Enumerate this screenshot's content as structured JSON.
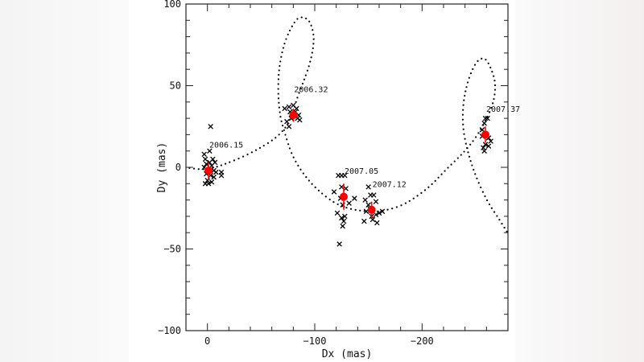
{
  "chart_data": {
    "type": "scatter",
    "title": "",
    "xlabel": "Dx (mas)",
    "ylabel": "Dy (mas)",
    "xlim": [
      20,
      -280
    ],
    "ylim": [
      -100,
      100
    ],
    "x_reversed": true,
    "x_ticks": [
      0,
      -100,
      -200
    ],
    "x_tick_labels": [
      "0",
      "−100",
      "−200"
    ],
    "y_ticks": [
      100,
      50,
      0,
      -50,
      -100
    ],
    "y_tick_labels": [
      "100",
      "50",
      "0",
      "−50",
      "−100"
    ],
    "x_minor_step": 20,
    "y_minor_step": 10,
    "grid": false,
    "colors": {
      "measurements": "#000000",
      "means": "#ff0000",
      "orbit": "#000000"
    },
    "model_curve": [
      [
        21,
        0
      ],
      [
        0,
        -1
      ],
      [
        -24,
        4
      ],
      [
        -46.5,
        11
      ],
      [
        -65,
        19
      ],
      [
        -76.5,
        28.6
      ],
      [
        -84,
        43
      ],
      [
        -95,
        63
      ],
      [
        -99,
        78
      ],
      [
        -96,
        88
      ],
      [
        -90,
        91.6
      ],
      [
        -82.5,
        90
      ],
      [
        -73,
        78
      ],
      [
        -67.5,
        63
      ],
      [
        -66,
        48
      ],
      [
        -67.5,
        33.5
      ],
      [
        -71,
        23.6
      ],
      [
        -80,
        6.4
      ],
      [
        -95,
        -8.4
      ],
      [
        -114,
        -19.7
      ],
      [
        -129,
        -24.6
      ],
      [
        -144,
        -26.6
      ],
      [
        -159,
        -27
      ],
      [
        -181.5,
        -23
      ],
      [
        -204,
        -13.3
      ],
      [
        -223,
        -1
      ],
      [
        -241.5,
        11.3
      ],
      [
        -255,
        23.6
      ],
      [
        -265.5,
        38.4
      ],
      [
        -268,
        50.7
      ],
      [
        -264,
        60.6
      ],
      [
        -258,
        66.5
      ],
      [
        -250.5,
        64
      ],
      [
        -243,
        53
      ],
      [
        -238.5,
        38.4
      ],
      [
        -238.5,
        23.6
      ],
      [
        -243,
        8.9
      ],
      [
        -250.5,
        -5.9
      ],
      [
        -261,
        -20.7
      ],
      [
        -271.5,
        -31.5
      ],
      [
        -279,
        -39.4
      ]
    ],
    "epochs": [
      {
        "label": "2006.15",
        "mean": [
          -1,
          -2
        ],
        "err": 5,
        "points": [
          [
            3,
            8
          ],
          [
            2,
            5
          ],
          [
            1,
            2
          ],
          [
            3,
            0
          ],
          [
            -2,
            3
          ],
          [
            -4,
            1
          ],
          [
            -6,
            -2
          ],
          [
            -3,
            -5
          ],
          [
            0,
            -8
          ],
          [
            2,
            -10
          ],
          [
            -1,
            -10
          ],
          [
            -4,
            -9
          ],
          [
            -6,
            -6
          ],
          [
            -8,
            -3
          ],
          [
            -5,
            5
          ],
          [
            -2,
            10
          ],
          [
            -13,
            -3
          ],
          [
            -13,
            -5
          ],
          [
            -3,
            25
          ],
          [
            1,
            -4
          ],
          [
            -7,
            3
          ]
        ]
      },
      {
        "label": "2006.32",
        "mean": [
          -80,
          32
        ],
        "err": 4,
        "points": [
          [
            -72,
            36
          ],
          [
            -76,
            37
          ],
          [
            -80,
            38
          ],
          [
            -83,
            36
          ],
          [
            -78,
            30
          ],
          [
            -74,
            28
          ],
          [
            -76,
            25
          ],
          [
            -84,
            30
          ],
          [
            -86,
            29
          ],
          [
            -85,
            32
          ],
          [
            -82,
            34
          ],
          [
            -77,
            34
          ]
        ]
      },
      {
        "label": "2007.05",
        "mean": [
          -127,
          -18
        ],
        "err": 8,
        "points": [
          [
            -118,
            -15
          ],
          [
            -122,
            -5
          ],
          [
            -125,
            -5
          ],
          [
            -128,
            -5
          ],
          [
            -125,
            -12
          ],
          [
            -124,
            -19
          ],
          [
            -126,
            -23
          ],
          [
            -121,
            -28
          ],
          [
            -125,
            -31
          ],
          [
            -127,
            -33
          ],
          [
            -126,
            -36
          ],
          [
            -128,
            -30
          ],
          [
            -132,
            -22
          ],
          [
            -137,
            -19
          ],
          [
            -123,
            -47
          ],
          [
            -129,
            -13
          ]
        ]
      },
      {
        "label": "2007.12",
        "mean": [
          -153,
          -26
        ],
        "err": 5,
        "points": [
          [
            -147,
            -20
          ],
          [
            -150,
            -23
          ],
          [
            -152,
            -17
          ],
          [
            -155,
            -17
          ],
          [
            -157,
            -21
          ],
          [
            -150,
            -12
          ],
          [
            -148,
            -27
          ],
          [
            -153,
            -30
          ],
          [
            -157,
            -29
          ],
          [
            -160,
            -28
          ],
          [
            -163,
            -27
          ],
          [
            -146,
            -33
          ],
          [
            -154,
            -32
          ],
          [
            -158,
            -34
          ],
          [
            -151,
            -25
          ]
        ]
      },
      {
        "label": "2007.37",
        "mean": [
          -259,
          20
        ],
        "err": 5,
        "points": [
          [
            -259,
            30
          ],
          [
            -261,
            30
          ],
          [
            -258,
            27
          ],
          [
            -256,
            23
          ],
          [
            -256,
            19
          ],
          [
            -262,
            18
          ],
          [
            -264,
            16
          ],
          [
            -259,
            14
          ],
          [
            -257,
            12
          ],
          [
            -262,
            13
          ],
          [
            -258,
            10
          ]
        ]
      }
    ]
  }
}
